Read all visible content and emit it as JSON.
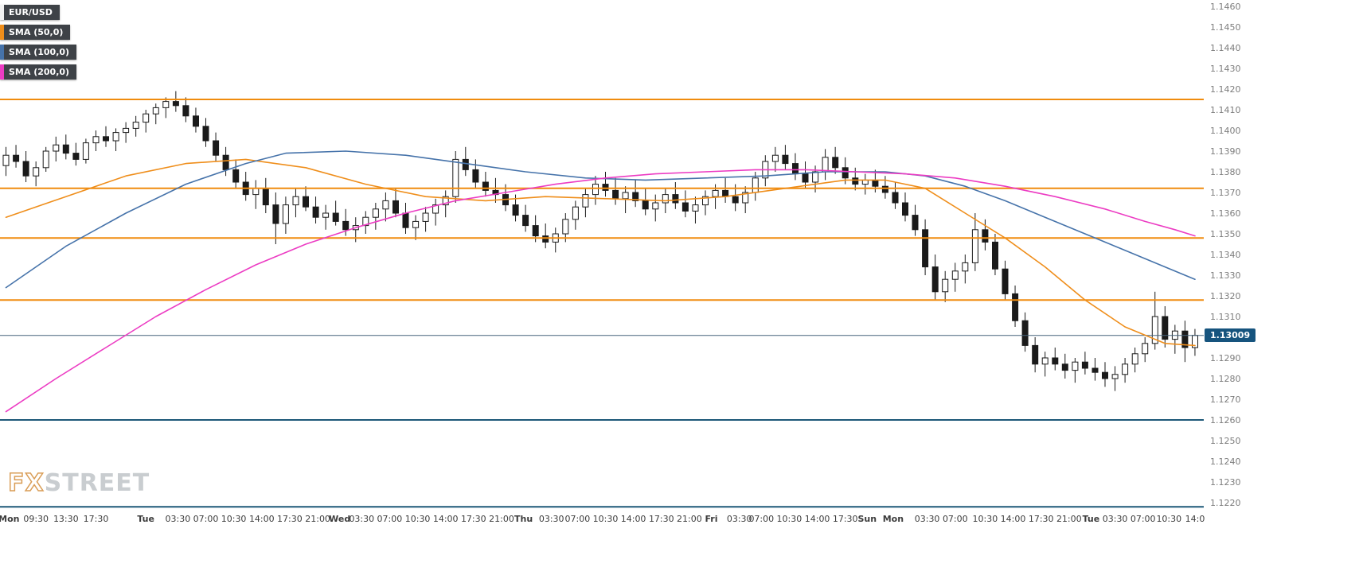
{
  "legend": {
    "pair": {
      "label": "EUR/USD",
      "chip_color": "#f2f2f2"
    },
    "smas": [
      {
        "label": "SMA (50,0)",
        "chip_color": "#ef8e1b"
      },
      {
        "label": "SMA (100,0)",
        "chip_color": "#4673aa"
      },
      {
        "label": "SMA (200,0)",
        "chip_color": "#ec3cc3"
      }
    ]
  },
  "price_badge": {
    "label": "1.13009",
    "bg": "#16547e"
  },
  "watermark": {
    "fx": "FX",
    "street": "STREET"
  },
  "chart_data": {
    "type": "candlestick",
    "title": "EUR/USD intraday candlestick chart with SMA(50), SMA(100), SMA(200)",
    "xlabel": "",
    "ylabel": "",
    "ylim": [
      1.122,
      1.146
    ],
    "y_tick_step": 0.001,
    "last_price": 1.13009,
    "legend_position": "top-left",
    "grid": false,
    "candle_colors": {
      "up": "#ffffff",
      "down": "#1a1a1a",
      "border": "#1a1a1a",
      "wick": "#1a1a1a"
    },
    "horizontal_lines": [
      {
        "name": "resistance-1",
        "price": 1.1415,
        "color": "#f08c0e",
        "width": 2
      },
      {
        "name": "resistance-2",
        "price": 1.1372,
        "color": "#f08c0e",
        "width": 2
      },
      {
        "name": "pivot-line",
        "price": 1.1348,
        "color": "#f08c0e",
        "width": 2
      },
      {
        "name": "support-1",
        "price": 1.1318,
        "color": "#f08c0e",
        "width": 2
      },
      {
        "name": "last-price-line",
        "price": 1.13009,
        "color": "#46647c",
        "width": 1
      },
      {
        "name": "support-2",
        "price": 1.126,
        "color": "#1d5878",
        "width": 2
      },
      {
        "name": "support-3",
        "price": 1.1218,
        "color": "#1d5878",
        "width": 2
      }
    ],
    "x_labels": [
      {
        "t": "Mon",
        "i": 0.3,
        "d": true
      },
      {
        "t": "09:30",
        "i": 3.0
      },
      {
        "t": "13:30",
        "i": 6.0
      },
      {
        "t": "17:30",
        "i": 9.0
      },
      {
        "t": "Tue",
        "i": 14.0,
        "d": true
      },
      {
        "t": "03:30",
        "i": 17.2
      },
      {
        "t": "07:00",
        "i": 20.0
      },
      {
        "t": "10:30",
        "i": 22.8
      },
      {
        "t": "14:00",
        "i": 25.6
      },
      {
        "t": "17:30",
        "i": 28.4
      },
      {
        "t": "21:00",
        "i": 31.2
      },
      {
        "t": "Wed",
        "i": 33.4,
        "d": true
      },
      {
        "t": "03:30",
        "i": 35.6
      },
      {
        "t": "07:00",
        "i": 38.4
      },
      {
        "t": "10:30",
        "i": 41.2
      },
      {
        "t": "14:00",
        "i": 44.0
      },
      {
        "t": "17:30",
        "i": 46.8
      },
      {
        "t": "21:00",
        "i": 49.6
      },
      {
        "t": "Thu",
        "i": 51.8,
        "d": true
      },
      {
        "t": "03:30",
        "i": 54.6
      },
      {
        "t": "07:00",
        "i": 57.2
      },
      {
        "t": "10:30",
        "i": 60.0
      },
      {
        "t": "14:00",
        "i": 62.8
      },
      {
        "t": "17:30",
        "i": 65.6
      },
      {
        "t": "21:00",
        "i": 68.4
      },
      {
        "t": "Fri",
        "i": 70.6,
        "d": true
      },
      {
        "t": "03:30",
        "i": 73.4
      },
      {
        "t": "07:00",
        "i": 75.6
      },
      {
        "t": "10:30",
        "i": 78.4
      },
      {
        "t": "14:00",
        "i": 81.2
      },
      {
        "t": "17:30",
        "i": 84.0
      },
      {
        "t": "Sun",
        "i": 86.2,
        "d": true
      },
      {
        "t": "Mon",
        "i": 88.8,
        "d": true
      },
      {
        "t": "03:30",
        "i": 92.2
      },
      {
        "t": "07:00",
        "i": 95.0
      },
      {
        "t": "10:30",
        "i": 98.0
      },
      {
        "t": "14:00",
        "i": 100.8
      },
      {
        "t": "17:30",
        "i": 103.6
      },
      {
        "t": "21:00",
        "i": 106.4
      },
      {
        "t": "Tue",
        "i": 108.6,
        "d": true
      },
      {
        "t": "03:30",
        "i": 111.0
      },
      {
        "t": "07:00",
        "i": 113.8
      },
      {
        "t": "10:30",
        "i": 116.4
      },
      {
        "t": "14:0",
        "i": 119.0
      }
    ],
    "candles_ohlc": [
      [
        1.1383,
        1.1392,
        1.1378,
        1.1388
      ],
      [
        1.1388,
        1.1393,
        1.1382,
        1.1385
      ],
      [
        1.1385,
        1.139,
        1.1375,
        1.1378
      ],
      [
        1.1378,
        1.1385,
        1.1373,
        1.1382
      ],
      [
        1.1382,
        1.1392,
        1.138,
        1.139
      ],
      [
        1.139,
        1.1397,
        1.1385,
        1.1393
      ],
      [
        1.1393,
        1.1398,
        1.1386,
        1.1389
      ],
      [
        1.1389,
        1.1394,
        1.1383,
        1.1386
      ],
      [
        1.1386,
        1.1396,
        1.1384,
        1.1394
      ],
      [
        1.1394,
        1.14,
        1.139,
        1.1397
      ],
      [
        1.1397,
        1.1402,
        1.1392,
        1.1395
      ],
      [
        1.1395,
        1.1401,
        1.139,
        1.1399
      ],
      [
        1.1399,
        1.1404,
        1.1394,
        1.1401
      ],
      [
        1.1401,
        1.1407,
        1.1397,
        1.1404
      ],
      [
        1.1404,
        1.141,
        1.1399,
        1.1408
      ],
      [
        1.1408,
        1.1413,
        1.1403,
        1.1411
      ],
      [
        1.1411,
        1.1416,
        1.1406,
        1.1414
      ],
      [
        1.1414,
        1.1419,
        1.1409,
        1.1412
      ],
      [
        1.1412,
        1.1416,
        1.1404,
        1.1407
      ],
      [
        1.1407,
        1.1411,
        1.1399,
        1.1402
      ],
      [
        1.1402,
        1.1406,
        1.1392,
        1.1395
      ],
      [
        1.1395,
        1.1399,
        1.1385,
        1.1388
      ],
      [
        1.1388,
        1.1392,
        1.1378,
        1.1381
      ],
      [
        1.1381,
        1.1386,
        1.1372,
        1.1375
      ],
      [
        1.1375,
        1.138,
        1.1366,
        1.1369
      ],
      [
        1.1369,
        1.1376,
        1.1362,
        1.1372
      ],
      [
        1.1372,
        1.1377,
        1.136,
        1.1364
      ],
      [
        1.1364,
        1.137,
        1.1345,
        1.1355
      ],
      [
        1.1355,
        1.1368,
        1.135,
        1.1364
      ],
      [
        1.1364,
        1.1372,
        1.1358,
        1.1368
      ],
      [
        1.1368,
        1.1373,
        1.1361,
        1.1363
      ],
      [
        1.1363,
        1.1368,
        1.1355,
        1.1358
      ],
      [
        1.1358,
        1.1364,
        1.1352,
        1.136
      ],
      [
        1.136,
        1.1366,
        1.1354,
        1.1356
      ],
      [
        1.1356,
        1.1362,
        1.1349,
        1.1352
      ],
      [
        1.1352,
        1.1358,
        1.1346,
        1.1354
      ],
      [
        1.1354,
        1.1361,
        1.135,
        1.1358
      ],
      [
        1.1358,
        1.1365,
        1.1352,
        1.1362
      ],
      [
        1.1362,
        1.137,
        1.1356,
        1.1366
      ],
      [
        1.1366,
        1.1372,
        1.1358,
        1.136
      ],
      [
        1.136,
        1.1365,
        1.135,
        1.1353
      ],
      [
        1.1353,
        1.1359,
        1.1347,
        1.1356
      ],
      [
        1.1356,
        1.1363,
        1.1351,
        1.136
      ],
      [
        1.136,
        1.1367,
        1.1354,
        1.1364
      ],
      [
        1.1364,
        1.1371,
        1.1358,
        1.1368
      ],
      [
        1.1368,
        1.139,
        1.1365,
        1.1386
      ],
      [
        1.1386,
        1.1392,
        1.1378,
        1.1381
      ],
      [
        1.1381,
        1.1386,
        1.1372,
        1.1375
      ],
      [
        1.1375,
        1.138,
        1.1368,
        1.1371
      ],
      [
        1.1371,
        1.1377,
        1.1365,
        1.1369
      ],
      [
        1.1369,
        1.1374,
        1.1361,
        1.1364
      ],
      [
        1.1364,
        1.1369,
        1.1356,
        1.1359
      ],
      [
        1.1359,
        1.1364,
        1.1351,
        1.1354
      ],
      [
        1.1354,
        1.1359,
        1.1346,
        1.1349
      ],
      [
        1.1349,
        1.1355,
        1.1343,
        1.1346
      ],
      [
        1.1346,
        1.1353,
        1.1341,
        1.135
      ],
      [
        1.135,
        1.136,
        1.1346,
        1.1357
      ],
      [
        1.1357,
        1.1366,
        1.1352,
        1.1363
      ],
      [
        1.1363,
        1.1372,
        1.1358,
        1.1369
      ],
      [
        1.1369,
        1.1378,
        1.1364,
        1.1374
      ],
      [
        1.1374,
        1.138,
        1.1368,
        1.1371
      ],
      [
        1.1371,
        1.1377,
        1.1364,
        1.1367
      ],
      [
        1.1367,
        1.1373,
        1.136,
        1.137
      ],
      [
        1.137,
        1.1376,
        1.1363,
        1.1366
      ],
      [
        1.1366,
        1.1372,
        1.1359,
        1.1362
      ],
      [
        1.1362,
        1.1369,
        1.1356,
        1.1365
      ],
      [
        1.1365,
        1.1372,
        1.136,
        1.1369
      ],
      [
        1.1369,
        1.1375,
        1.1362,
        1.1365
      ],
      [
        1.1365,
        1.1371,
        1.1358,
        1.1361
      ],
      [
        1.1361,
        1.1368,
        1.1355,
        1.1364
      ],
      [
        1.1364,
        1.1371,
        1.1359,
        1.1368
      ],
      [
        1.1368,
        1.1374,
        1.1362,
        1.1371
      ],
      [
        1.1371,
        1.1377,
        1.1365,
        1.1368
      ],
      [
        1.1368,
        1.1374,
        1.1361,
        1.1365
      ],
      [
        1.1365,
        1.1373,
        1.136,
        1.137
      ],
      [
        1.137,
        1.138,
        1.1366,
        1.1377
      ],
      [
        1.1377,
        1.1388,
        1.1373,
        1.1385
      ],
      [
        1.1385,
        1.1392,
        1.138,
        1.1388
      ],
      [
        1.1388,
        1.1393,
        1.1381,
        1.1384
      ],
      [
        1.1384,
        1.1389,
        1.1376,
        1.1379
      ],
      [
        1.1379,
        1.1385,
        1.1372,
        1.1375
      ],
      [
        1.1375,
        1.1383,
        1.137,
        1.138
      ],
      [
        1.138,
        1.1391,
        1.1376,
        1.1387
      ],
      [
        1.1387,
        1.1392,
        1.1379,
        1.1382
      ],
      [
        1.1382,
        1.1387,
        1.1374,
        1.1377
      ],
      [
        1.1377,
        1.1382,
        1.1371,
        1.1374
      ],
      [
        1.1374,
        1.1379,
        1.1369,
        1.1376
      ],
      [
        1.1376,
        1.1381,
        1.137,
        1.1373
      ],
      [
        1.1373,
        1.1378,
        1.1367,
        1.137
      ],
      [
        1.137,
        1.1375,
        1.1362,
        1.1365
      ],
      [
        1.1365,
        1.137,
        1.1356,
        1.1359
      ],
      [
        1.1359,
        1.1364,
        1.1349,
        1.1352
      ],
      [
        1.1352,
        1.1357,
        1.133,
        1.1334
      ],
      [
        1.1334,
        1.134,
        1.1318,
        1.1322
      ],
      [
        1.1322,
        1.1332,
        1.1317,
        1.1328
      ],
      [
        1.1328,
        1.1336,
        1.1322,
        1.1332
      ],
      [
        1.1332,
        1.134,
        1.1326,
        1.1336
      ],
      [
        1.1336,
        1.136,
        1.1332,
        1.1352
      ],
      [
        1.1352,
        1.1357,
        1.1342,
        1.1346
      ],
      [
        1.1346,
        1.135,
        1.133,
        1.1333
      ],
      [
        1.1333,
        1.1337,
        1.1318,
        1.1321
      ],
      [
        1.1321,
        1.1325,
        1.1305,
        1.1308
      ],
      [
        1.1308,
        1.1312,
        1.1293,
        1.1296
      ],
      [
        1.1296,
        1.13,
        1.1283,
        1.1287
      ],
      [
        1.1287,
        1.1293,
        1.1281,
        1.129
      ],
      [
        1.129,
        1.1295,
        1.1284,
        1.1287
      ],
      [
        1.1287,
        1.1292,
        1.128,
        1.1284
      ],
      [
        1.1284,
        1.129,
        1.1278,
        1.1288
      ],
      [
        1.1288,
        1.1293,
        1.1282,
        1.1285
      ],
      [
        1.1285,
        1.129,
        1.1279,
        1.1283
      ],
      [
        1.1283,
        1.1288,
        1.1276,
        1.128
      ],
      [
        1.128,
        1.1286,
        1.1274,
        1.1282
      ],
      [
        1.1282,
        1.129,
        1.1278,
        1.1287
      ],
      [
        1.1287,
        1.1295,
        1.1283,
        1.1292
      ],
      [
        1.1292,
        1.13,
        1.1288,
        1.1297
      ],
      [
        1.1297,
        1.1322,
        1.1294,
        1.131
      ],
      [
        1.131,
        1.1315,
        1.1295,
        1.1299
      ],
      [
        1.1299,
        1.1306,
        1.1292,
        1.1303
      ],
      [
        1.1303,
        1.1308,
        1.1288,
        1.1295
      ],
      [
        1.1295,
        1.1304,
        1.1291,
        1.13009
      ]
    ],
    "sma_series": [
      {
        "name": "SMA (50,0)",
        "color": "#ef8e1b",
        "points": [
          [
            0,
            1.1358
          ],
          [
            6,
            1.1368
          ],
          [
            12,
            1.1378
          ],
          [
            18,
            1.1384
          ],
          [
            24,
            1.1386
          ],
          [
            30,
            1.1382
          ],
          [
            36,
            1.1374
          ],
          [
            42,
            1.1368
          ],
          [
            48,
            1.1366
          ],
          [
            54,
            1.1368
          ],
          [
            60,
            1.1367
          ],
          [
            66,
            1.1366
          ],
          [
            72,
            1.1368
          ],
          [
            78,
            1.1372
          ],
          [
            84,
            1.1376
          ],
          [
            88,
            1.1376
          ],
          [
            92,
            1.1372
          ],
          [
            96,
            1.136
          ],
          [
            100,
            1.1348
          ],
          [
            104,
            1.1334
          ],
          [
            108,
            1.1318
          ],
          [
            112,
            1.1305
          ],
          [
            116,
            1.1297
          ],
          [
            119,
            1.1296
          ]
        ]
      },
      {
        "name": "SMA (100,0)",
        "color": "#4673aa",
        "points": [
          [
            0,
            1.1324
          ],
          [
            6,
            1.1344
          ],
          [
            12,
            1.136
          ],
          [
            18,
            1.1374
          ],
          [
            24,
            1.1384
          ],
          [
            28,
            1.1389
          ],
          [
            34,
            1.139
          ],
          [
            40,
            1.1388
          ],
          [
            46,
            1.1384
          ],
          [
            52,
            1.138
          ],
          [
            58,
            1.1377
          ],
          [
            64,
            1.1376
          ],
          [
            70,
            1.1377
          ],
          [
            76,
            1.1378
          ],
          [
            82,
            1.138
          ],
          [
            88,
            1.138
          ],
          [
            92,
            1.1378
          ],
          [
            96,
            1.1373
          ],
          [
            100,
            1.1366
          ],
          [
            104,
            1.1358
          ],
          [
            108,
            1.135
          ],
          [
            112,
            1.1342
          ],
          [
            116,
            1.1334
          ],
          [
            119,
            1.1328
          ]
        ]
      },
      {
        "name": "SMA (200,0)",
        "color": "#ec3cc3",
        "points": [
          [
            0,
            1.1264
          ],
          [
            5,
            1.128
          ],
          [
            10,
            1.1295
          ],
          [
            15,
            1.131
          ],
          [
            20,
            1.1323
          ],
          [
            25,
            1.1335
          ],
          [
            30,
            1.1345
          ],
          [
            35,
            1.1353
          ],
          [
            40,
            1.136
          ],
          [
            45,
            1.1366
          ],
          [
            50,
            1.137
          ],
          [
            55,
            1.1374
          ],
          [
            60,
            1.1377
          ],
          [
            65,
            1.1379
          ],
          [
            70,
            1.138
          ],
          [
            75,
            1.1381
          ],
          [
            80,
            1.1381
          ],
          [
            85,
            1.138
          ],
          [
            90,
            1.1379
          ],
          [
            95,
            1.1377
          ],
          [
            100,
            1.1373
          ],
          [
            105,
            1.1368
          ],
          [
            110,
            1.1362
          ],
          [
            114,
            1.1356
          ],
          [
            117,
            1.1352
          ],
          [
            119,
            1.1349
          ]
        ]
      }
    ]
  }
}
